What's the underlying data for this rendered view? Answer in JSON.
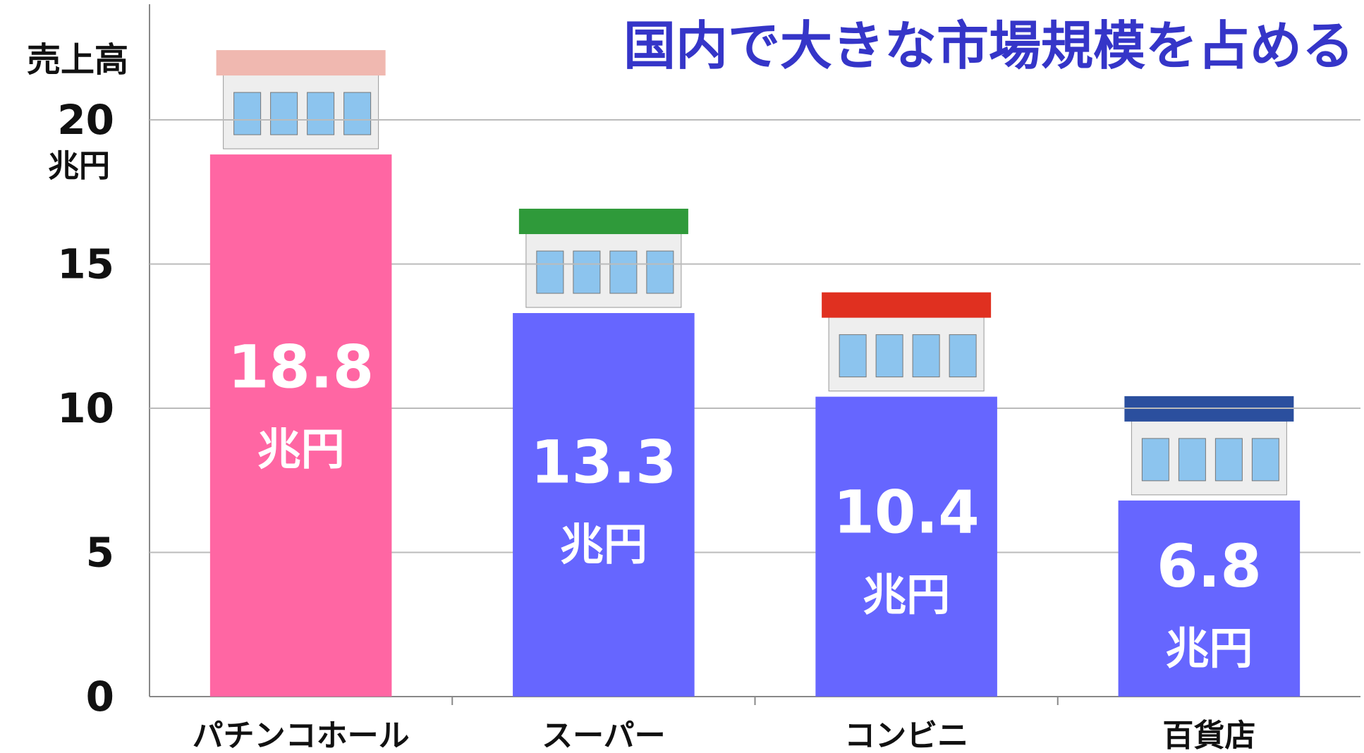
{
  "chart_data": {
    "type": "bar",
    "title": "国内で大きな市場規模を占める",
    "y_label": "売上高",
    "y_unit": "兆円",
    "categories": [
      "パチンコホール",
      "スーパー",
      "コンビニ",
      "百貨店"
    ],
    "values": [
      18.8,
      13.3,
      10.4,
      6.8
    ],
    "value_labels": [
      "18.8",
      "13.3",
      "10.4",
      "6.8"
    ],
    "colors": [
      "#ff66a3",
      "#6666ff",
      "#6666ff",
      "#6666ff"
    ],
    "ylim": [
      0,
      20
    ],
    "yticks": [
      0,
      5,
      10,
      15,
      20
    ],
    "grid": true
  }
}
